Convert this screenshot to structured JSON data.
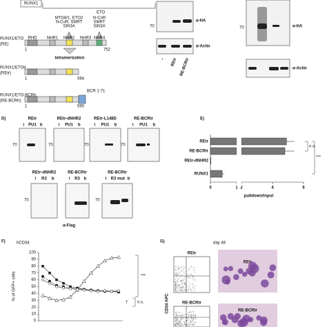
{
  "panel_c": {
    "runx1": "RUNX1",
    "eto": "ETO",
    "domains": [
      "RHD",
      "NHR1",
      "NHR2",
      "NHR3",
      "NHR4"
    ],
    "partners_a": [
      "MTG8/1, ETO2",
      "N-CoR, SMRT",
      "SIN3A"
    ],
    "partners_b": [
      "N-CoR",
      "SMRT",
      "SIN3A"
    ],
    "tetra": "tetramerization",
    "constructs": [
      {
        "name": "RUNX1/ETO",
        "abbr": "(RE)",
        "start": "1",
        "end": "752"
      },
      {
        "name": "RUNX1/ETOtr",
        "abbr": "(REtr)",
        "start": "1",
        "end": "594"
      },
      {
        "name": "RUNX1/ETO-BCRtr",
        "abbr": "(RE-BCRtr)",
        "start": "1",
        "end": "590"
      }
    ],
    "bcr": "BCR 1-71"
  },
  "blot_left": {
    "marker": "70",
    "ha": "α-HA",
    "actin": "α-Actin",
    "lanes": [
      "–",
      "REtr",
      "RE-BCRtr"
    ]
  },
  "blot_right": {
    "marker": "70",
    "ha": "α-HA",
    "actin": "α-Actin"
  },
  "panel_d": {
    "letter": "D)",
    "marker": "70",
    "antibody": "α-Flag",
    "top": [
      {
        "title": "REtr",
        "lanes": [
          "i",
          "PU1",
          "b"
        ]
      },
      {
        "title": "REtr-dNHR2",
        "lanes": [
          "i",
          "PU1",
          "b"
        ]
      },
      {
        "title": "REtr-L148D",
        "lanes": [
          "i",
          "PU1",
          "b"
        ]
      },
      {
        "title": "RE-BCRtr",
        "lanes": [
          "i",
          "PU1",
          "b"
        ]
      }
    ],
    "bottom": [
      {
        "title": "REtr-dNHR2",
        "lanes": [
          "i",
          "R3",
          "b"
        ]
      },
      {
        "title": "RE-BCRtr",
        "lanes": [
          "i",
          "R3",
          "b"
        ]
      },
      {
        "title": "RE-BCRtr",
        "lanes": [
          "i",
          "R3",
          "mut",
          "b"
        ]
      }
    ]
  },
  "panel_e": {
    "letter": "E)",
    "categories": [
      "REtr",
      "RE-BCRtr",
      "REtr-dNHR2",
      "RUNX1"
    ],
    "values": [
      4.9,
      4.8,
      0.02,
      0.45
    ],
    "errors": [
      0.5,
      0.6,
      0,
      0.08
    ],
    "xticks": [
      0,
      1,
      2,
      4,
      6
    ],
    "xlabel": "pulldown/input",
    "ns": "n.s.",
    "sig": "***"
  },
  "panel_f": {
    "letter": "F)",
    "title": "hCD34",
    "ylabel": "% of GFP+ cells",
    "ylim": [
      0,
      100
    ],
    "yticks": [
      0,
      10,
      20,
      30,
      40,
      50,
      60,
      70,
      80,
      90,
      100
    ],
    "series": [
      {
        "marker": "triangle",
        "values": [
          37,
          33,
          30,
          31,
          35,
          45,
          58,
          70,
          80,
          88,
          92,
          93
        ]
      },
      {
        "marker": "square",
        "values": [
          80,
          70,
          60,
          55,
          50,
          48,
          46,
          45,
          44,
          43,
          43,
          42
        ]
      },
      {
        "marker": "circle",
        "values": [
          65,
          58,
          52,
          50,
          48,
          47,
          46,
          45,
          44,
          44,
          43,
          43
        ]
      },
      {
        "marker": "open-circle",
        "values": [
          60,
          55,
          50,
          48,
          47,
          46,
          45,
          44,
          43,
          44,
          43,
          44
        ]
      }
    ],
    "sig": "***",
    "ns": "n.s.",
    "dagger": "†"
  },
  "panel_g": {
    "letter": "G)",
    "day": "day 48",
    "plots": [
      {
        "label": "REtr"
      },
      {
        "label": "RE-BCRtr"
      }
    ],
    "ylabel": "CD34 APC"
  }
}
